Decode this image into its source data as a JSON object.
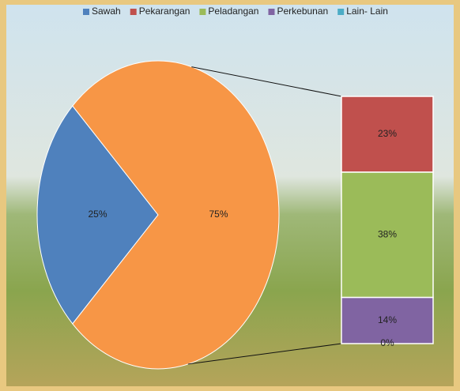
{
  "chart_data": {
    "type": "bar_of_pie",
    "categories": [
      "Sawah",
      "Pekarangan",
      "Peladangan",
      "Perkebunan",
      "Lain- Lain"
    ],
    "values": [
      25,
      23,
      38,
      14,
      0
    ],
    "value_labels": [
      "25%",
      "23%",
      "38%",
      "14%",
      "0%"
    ],
    "colors": [
      "#4f81bd",
      "#c0504d",
      "#9bbb59",
      "#8064a2",
      "#4bacc6"
    ],
    "pie_count": 1,
    "other_value": 75,
    "other_label": "75%",
    "other_color": "#f79646",
    "legend": "top"
  }
}
